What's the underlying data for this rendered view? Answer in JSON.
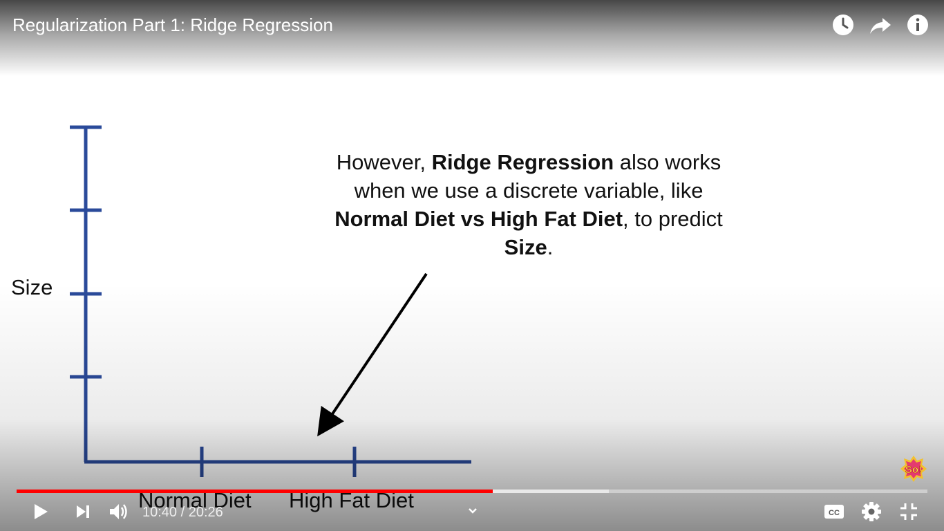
{
  "video": {
    "title": "Regularization Part 1: Ridge Regression",
    "current_time": "10:40",
    "time_separator": " / ",
    "duration": "20:26",
    "progress_fraction": 0.523,
    "buffered_fraction": 0.65
  },
  "slide": {
    "y_axis_label": "Size",
    "x_categories": [
      "Normal Diet",
      "High Fat Diet"
    ],
    "callout": {
      "t1": "However, ",
      "b1": "Ridge Regression",
      "t2": " also works when we use a discrete variable, like ",
      "b2": "Normal Diet vs High Fat Diet",
      "t3": ", to predict ",
      "b3": "Size",
      "t4": "."
    },
    "axis_color": "#2a4a9a"
  },
  "top_controls": {
    "icons": [
      "watch-later-icon",
      "share-icon",
      "info-icon"
    ]
  },
  "bottom_controls": {
    "left_icons": [
      "play-icon",
      "next-icon",
      "volume-icon"
    ],
    "right_icons": [
      "closed-captions-icon",
      "settings-icon",
      "exit-fullscreen-icon"
    ],
    "chevron": "chevron-down-icon"
  },
  "channel_logo": {
    "name": "StatQuest logo",
    "logo_text": "So!"
  },
  "colors": {
    "progress_played": "#ff0000",
    "overlay_text": "#ffffff"
  }
}
